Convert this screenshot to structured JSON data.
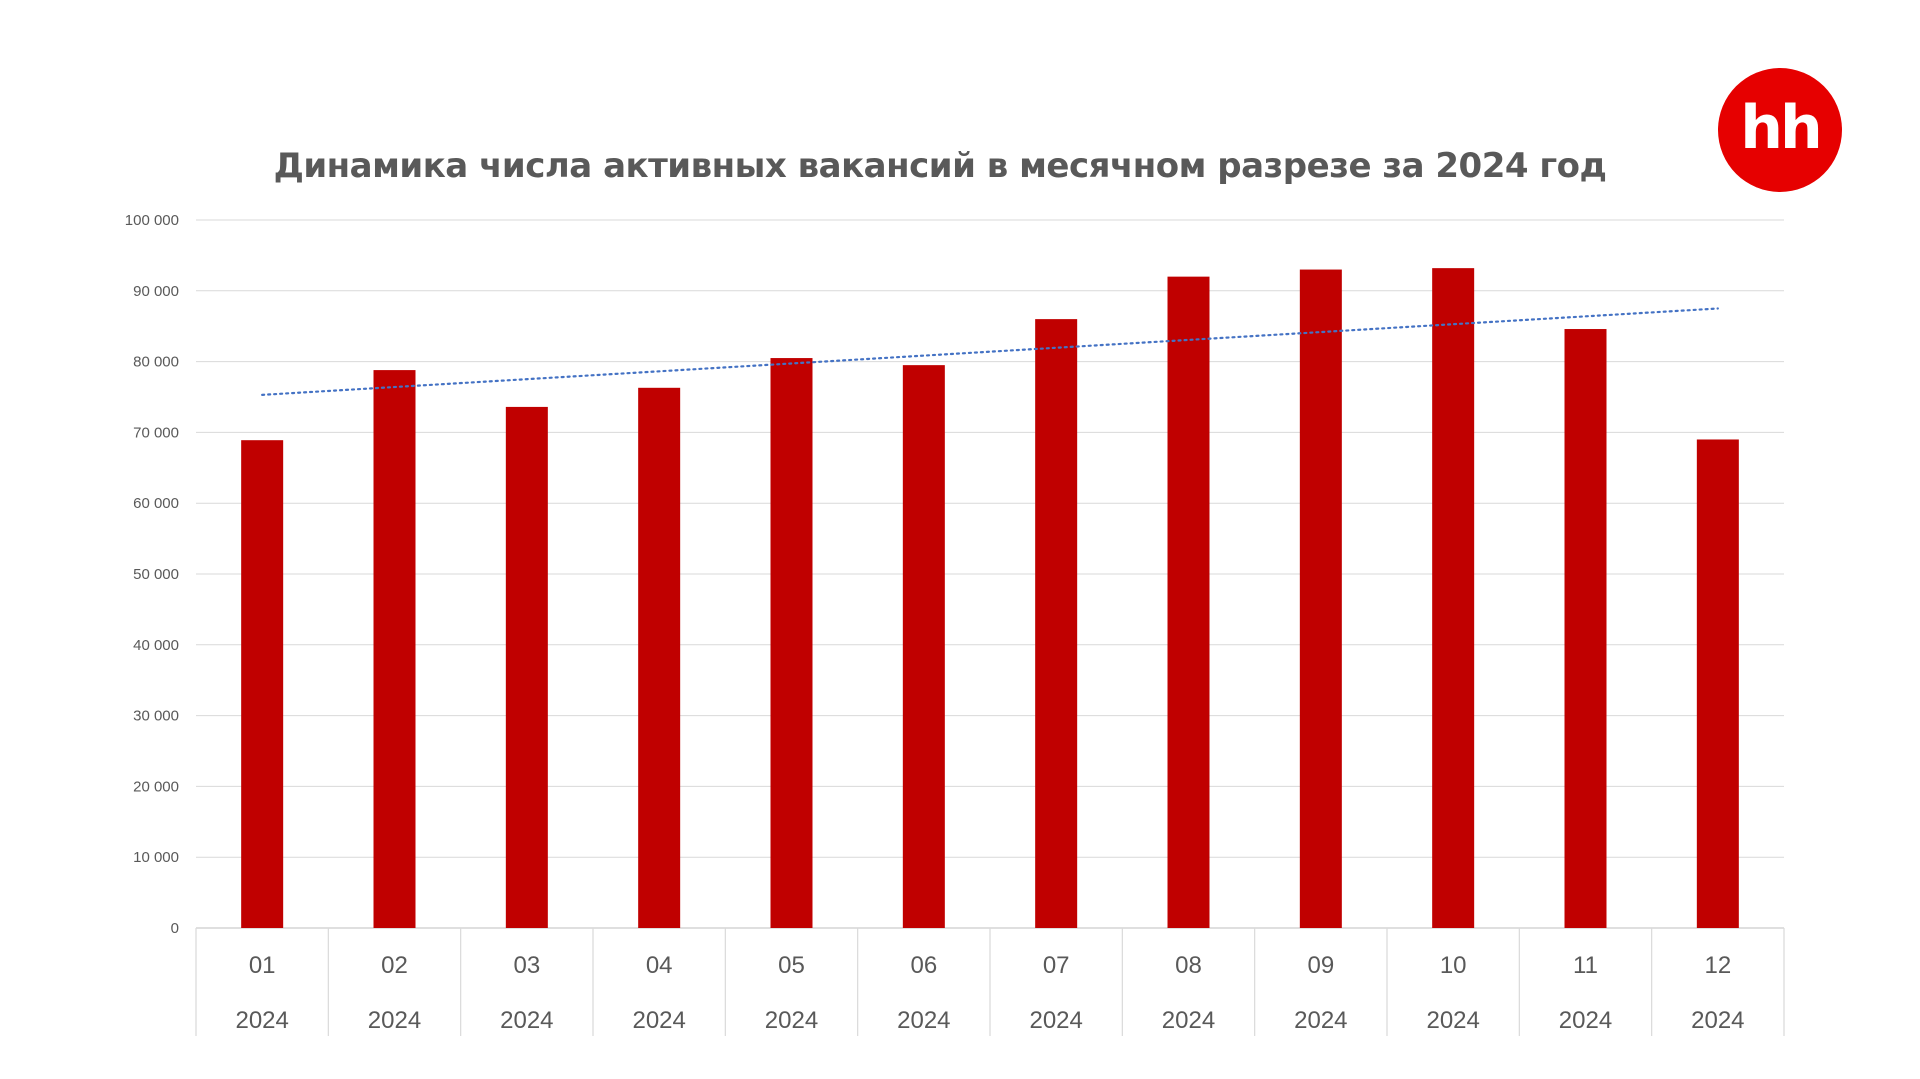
{
  "logo": {
    "text": "hh",
    "color": "#e60000"
  },
  "chart_data": {
    "type": "bar",
    "title": "Динамика числа активных вакансий в месячном разрезе за 2024 год",
    "categories": [
      "01",
      "02",
      "03",
      "04",
      "05",
      "06",
      "07",
      "08",
      "09",
      "10",
      "11",
      "12"
    ],
    "category_group_labels": [
      "2024",
      "2024",
      "2024",
      "2024",
      "2024",
      "2024",
      "2024",
      "2024",
      "2024",
      "2024",
      "2024",
      "2024"
    ],
    "values": [
      68900,
      78800,
      73600,
      76300,
      80500,
      79500,
      86000,
      92000,
      93000,
      93200,
      84600,
      69000
    ],
    "ylim": [
      0,
      100000
    ],
    "yticks": [
      0,
      10000,
      20000,
      30000,
      40000,
      50000,
      60000,
      70000,
      80000,
      90000,
      100000
    ],
    "ytick_labels": [
      "0",
      "10 000",
      "20 000",
      "30 000",
      "40 000",
      "50 000",
      "60 000",
      "70 000",
      "80 000",
      "90 000",
      "100 000"
    ],
    "xlabel": "",
    "ylabel": "",
    "grid": true,
    "bar_color": "#c00000",
    "trendline": {
      "type": "linear",
      "style": "dotted",
      "color": "#4472c4",
      "start": 75300,
      "end": 87500
    }
  }
}
